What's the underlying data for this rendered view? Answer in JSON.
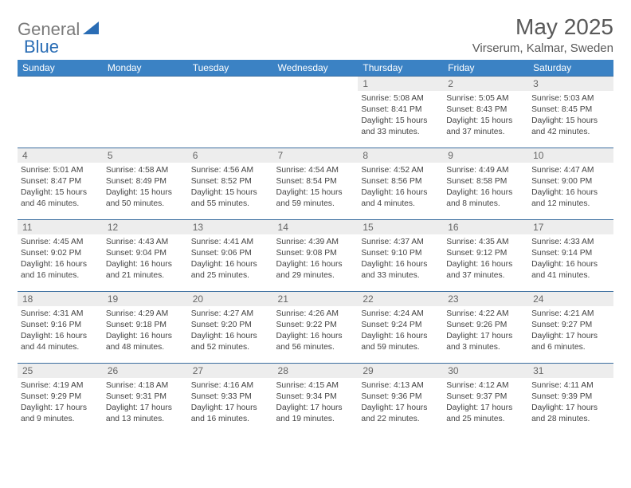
{
  "brand": {
    "part1": "General",
    "part2": "Blue"
  },
  "title": "May 2025",
  "location": "Virserum, Kalmar, Sweden",
  "colors": {
    "header_bg": "#3b82c4",
    "header_text": "#ffffff",
    "row_border": "#3b6ea0",
    "daynum_bg": "#ededed",
    "brand_gray": "#7a7a7a",
    "brand_blue": "#2a6db5"
  },
  "dayNames": [
    "Sunday",
    "Monday",
    "Tuesday",
    "Wednesday",
    "Thursday",
    "Friday",
    "Saturday"
  ],
  "weeks": [
    [
      null,
      null,
      null,
      null,
      {
        "n": "1",
        "sr": "5:08 AM",
        "ss": "8:41 PM",
        "dl": "15 hours and 33 minutes."
      },
      {
        "n": "2",
        "sr": "5:05 AM",
        "ss": "8:43 PM",
        "dl": "15 hours and 37 minutes."
      },
      {
        "n": "3",
        "sr": "5:03 AM",
        "ss": "8:45 PM",
        "dl": "15 hours and 42 minutes."
      }
    ],
    [
      {
        "n": "4",
        "sr": "5:01 AM",
        "ss": "8:47 PM",
        "dl": "15 hours and 46 minutes."
      },
      {
        "n": "5",
        "sr": "4:58 AM",
        "ss": "8:49 PM",
        "dl": "15 hours and 50 minutes."
      },
      {
        "n": "6",
        "sr": "4:56 AM",
        "ss": "8:52 PM",
        "dl": "15 hours and 55 minutes."
      },
      {
        "n": "7",
        "sr": "4:54 AM",
        "ss": "8:54 PM",
        "dl": "15 hours and 59 minutes."
      },
      {
        "n": "8",
        "sr": "4:52 AM",
        "ss": "8:56 PM",
        "dl": "16 hours and 4 minutes."
      },
      {
        "n": "9",
        "sr": "4:49 AM",
        "ss": "8:58 PM",
        "dl": "16 hours and 8 minutes."
      },
      {
        "n": "10",
        "sr": "4:47 AM",
        "ss": "9:00 PM",
        "dl": "16 hours and 12 minutes."
      }
    ],
    [
      {
        "n": "11",
        "sr": "4:45 AM",
        "ss": "9:02 PM",
        "dl": "16 hours and 16 minutes."
      },
      {
        "n": "12",
        "sr": "4:43 AM",
        "ss": "9:04 PM",
        "dl": "16 hours and 21 minutes."
      },
      {
        "n": "13",
        "sr": "4:41 AM",
        "ss": "9:06 PM",
        "dl": "16 hours and 25 minutes."
      },
      {
        "n": "14",
        "sr": "4:39 AM",
        "ss": "9:08 PM",
        "dl": "16 hours and 29 minutes."
      },
      {
        "n": "15",
        "sr": "4:37 AM",
        "ss": "9:10 PM",
        "dl": "16 hours and 33 minutes."
      },
      {
        "n": "16",
        "sr": "4:35 AM",
        "ss": "9:12 PM",
        "dl": "16 hours and 37 minutes."
      },
      {
        "n": "17",
        "sr": "4:33 AM",
        "ss": "9:14 PM",
        "dl": "16 hours and 41 minutes."
      }
    ],
    [
      {
        "n": "18",
        "sr": "4:31 AM",
        "ss": "9:16 PM",
        "dl": "16 hours and 44 minutes."
      },
      {
        "n": "19",
        "sr": "4:29 AM",
        "ss": "9:18 PM",
        "dl": "16 hours and 48 minutes."
      },
      {
        "n": "20",
        "sr": "4:27 AM",
        "ss": "9:20 PM",
        "dl": "16 hours and 52 minutes."
      },
      {
        "n": "21",
        "sr": "4:26 AM",
        "ss": "9:22 PM",
        "dl": "16 hours and 56 minutes."
      },
      {
        "n": "22",
        "sr": "4:24 AM",
        "ss": "9:24 PM",
        "dl": "16 hours and 59 minutes."
      },
      {
        "n": "23",
        "sr": "4:22 AM",
        "ss": "9:26 PM",
        "dl": "17 hours and 3 minutes."
      },
      {
        "n": "24",
        "sr": "4:21 AM",
        "ss": "9:27 PM",
        "dl": "17 hours and 6 minutes."
      }
    ],
    [
      {
        "n": "25",
        "sr": "4:19 AM",
        "ss": "9:29 PM",
        "dl": "17 hours and 9 minutes."
      },
      {
        "n": "26",
        "sr": "4:18 AM",
        "ss": "9:31 PM",
        "dl": "17 hours and 13 minutes."
      },
      {
        "n": "27",
        "sr": "4:16 AM",
        "ss": "9:33 PM",
        "dl": "17 hours and 16 minutes."
      },
      {
        "n": "28",
        "sr": "4:15 AM",
        "ss": "9:34 PM",
        "dl": "17 hours and 19 minutes."
      },
      {
        "n": "29",
        "sr": "4:13 AM",
        "ss": "9:36 PM",
        "dl": "17 hours and 22 minutes."
      },
      {
        "n": "30",
        "sr": "4:12 AM",
        "ss": "9:37 PM",
        "dl": "17 hours and 25 minutes."
      },
      {
        "n": "31",
        "sr": "4:11 AM",
        "ss": "9:39 PM",
        "dl": "17 hours and 28 minutes."
      }
    ]
  ],
  "labels": {
    "sunrise": "Sunrise: ",
    "sunset": "Sunset: ",
    "daylight": "Daylight: "
  }
}
